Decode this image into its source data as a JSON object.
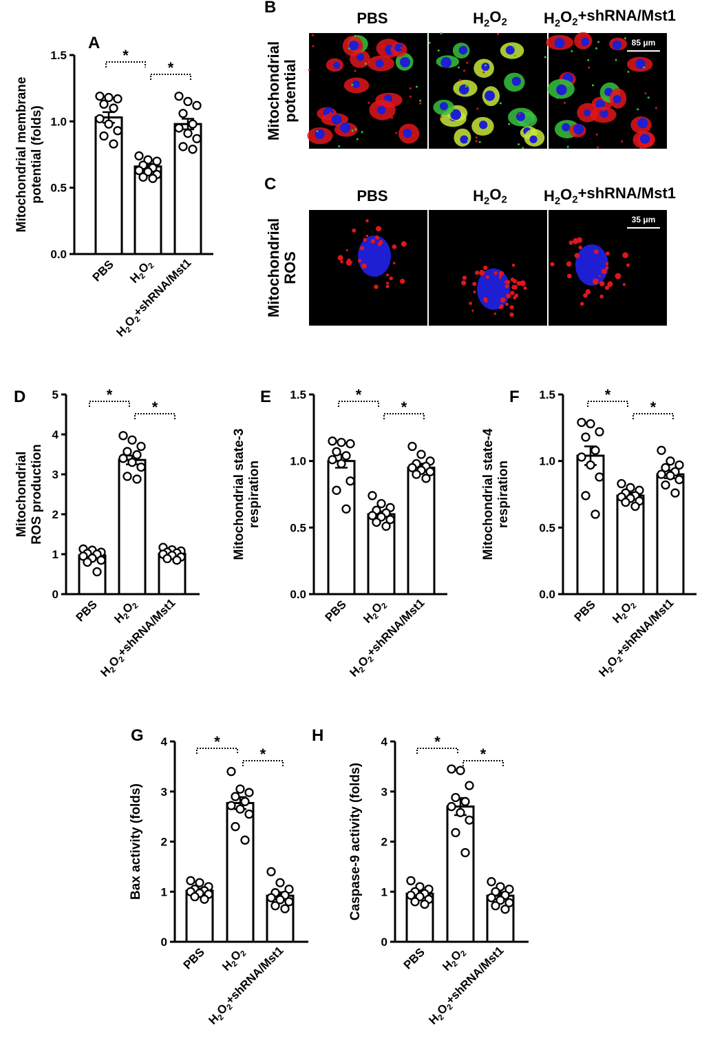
{
  "chart_data": [
    {
      "panel": "A",
      "type": "bar",
      "categories": [
        "PBS",
        "H2O2",
        "H2O2+shRNA/Mst1"
      ],
      "ylabel_lines": [
        "Mitochondrial membrane",
        "potential (folds)"
      ],
      "ylim": [
        0,
        1.5
      ],
      "yticks": [
        "0.0",
        "0.5",
        "1.0",
        "1.5"
      ],
      "ytick_values": [
        0,
        0.5,
        1.0,
        1.5
      ],
      "values": [
        1.03,
        0.66,
        0.98
      ],
      "sem": [
        0.04,
        0.02,
        0.04
      ],
      "points": [
        [
          1.19,
          1.18,
          1.17,
          1.13,
          1.1,
          1.02,
          0.98,
          0.93,
          0.89,
          0.83
        ],
        [
          0.74,
          0.71,
          0.7,
          0.67,
          0.65,
          0.63,
          0.62,
          0.6,
          0.58,
          0.57
        ],
        [
          1.19,
          1.15,
          1.12,
          1.06,
          0.98,
          0.95,
          0.91,
          0.87,
          0.81,
          0.79
        ]
      ],
      "significance": [
        [
          "PBS",
          "H2O2",
          "*"
        ],
        [
          "H2O2",
          "H2O2+shRNA/Mst1",
          "*"
        ]
      ]
    },
    {
      "panel": "D",
      "type": "bar",
      "categories": [
        "PBS",
        "H2O2",
        "H2O2+shRNA/Mst1"
      ],
      "ylabel_lines": [
        "Mitochondrial",
        "ROS production"
      ],
      "ylim": [
        0,
        5
      ],
      "yticks": [
        "0",
        "1",
        "2",
        "3",
        "4",
        "5"
      ],
      "ytick_values": [
        0,
        1,
        2,
        3,
        4,
        5
      ],
      "values": [
        0.97,
        3.36,
        1.01
      ],
      "sem": [
        0.06,
        0.11,
        0.04
      ],
      "points": [
        [
          1.13,
          1.1,
          1.05,
          1.02,
          1.0,
          0.95,
          0.9,
          0.85,
          0.8,
          0.56
        ],
        [
          3.97,
          3.86,
          3.7,
          3.57,
          3.49,
          3.4,
          3.3,
          3.18,
          2.95,
          2.88
        ],
        [
          1.17,
          1.11,
          1.08,
          1.05,
          1.03,
          1.0,
          0.97,
          0.93,
          0.89,
          0.85
        ]
      ],
      "significance": [
        [
          "PBS",
          "H2O2",
          "*"
        ],
        [
          "H2O2",
          "H2O2+shRNA/Mst1",
          "*"
        ]
      ]
    },
    {
      "panel": "E",
      "type": "bar",
      "categories": [
        "PBS",
        "H2O2",
        "H2O2+shRNA/Mst1"
      ],
      "ylabel_lines": [
        "Mitochondrial state-3",
        "respiration"
      ],
      "ylim": [
        0,
        1.5
      ],
      "yticks": [
        "0.0",
        "0.5",
        "1.0",
        "1.5"
      ],
      "ytick_values": [
        0,
        0.5,
        1.0,
        1.5
      ],
      "values": [
        1.0,
        0.6,
        0.95
      ],
      "sem": [
        0.05,
        0.02,
        0.03
      ],
      "points": [
        [
          1.15,
          1.14,
          1.13,
          1.07,
          1.04,
          1.01,
          0.98,
          0.85,
          0.78,
          0.64
        ],
        [
          0.74,
          0.68,
          0.65,
          0.63,
          0.61,
          0.59,
          0.58,
          0.56,
          0.54,
          0.51
        ],
        [
          1.11,
          1.05,
          1.0,
          0.98,
          0.96,
          0.95,
          0.93,
          0.92,
          0.9,
          0.87
        ]
      ],
      "significance": [
        [
          "PBS",
          "H2O2",
          "*"
        ],
        [
          "H2O2",
          "H2O2+shRNA/Mst1",
          "*"
        ]
      ]
    },
    {
      "panel": "F",
      "type": "bar",
      "categories": [
        "PBS",
        "H2O2",
        "H2O2+shRNA/Mst1"
      ],
      "ylabel_lines": [
        "Mitochondrial state-4",
        "respiration"
      ],
      "ylim": [
        0,
        1.5
      ],
      "yticks": [
        "0.0",
        "0.5",
        "1.0",
        "1.5"
      ],
      "ytick_values": [
        0,
        0.5,
        1.0,
        1.5
      ],
      "values": [
        1.04,
        0.74,
        0.9
      ],
      "sem": [
        0.07,
        0.02,
        0.03
      ],
      "points": [
        [
          1.29,
          1.28,
          1.22,
          1.18,
          1.08,
          1.03,
          0.97,
          0.88,
          0.74,
          0.6
        ],
        [
          0.83,
          0.8,
          0.78,
          0.76,
          0.74,
          0.73,
          0.72,
          0.7,
          0.69,
          0.66
        ],
        [
          1.08,
          1.0,
          0.97,
          0.95,
          0.92,
          0.9,
          0.89,
          0.86,
          0.82,
          0.76
        ]
      ],
      "significance": [
        [
          "PBS",
          "H2O2",
          "*"
        ],
        [
          "H2O2",
          "H2O2+shRNA/Mst1",
          "*"
        ]
      ]
    },
    {
      "panel": "G",
      "type": "bar",
      "categories": [
        "PBS",
        "H2O2",
        "H2O2+shRNA/Mst1"
      ],
      "ylabel_lines": [
        "Bax activity (folds)"
      ],
      "ylim": [
        0,
        4
      ],
      "yticks": [
        "0",
        "1",
        "2",
        "3",
        "4"
      ],
      "ytick_values": [
        0,
        1,
        2,
        3,
        4
      ],
      "values": [
        1.02,
        2.77,
        0.92
      ],
      "sem": [
        0.04,
        0.12,
        0.07
      ],
      "points": [
        [
          1.22,
          1.18,
          1.1,
          1.05,
          1.02,
          1.0,
          0.97,
          0.95,
          0.9,
          0.85
        ],
        [
          3.4,
          3.05,
          2.98,
          2.9,
          2.8,
          2.72,
          2.65,
          2.55,
          2.3,
          2.03
        ],
        [
          1.4,
          1.18,
          1.05,
          0.98,
          0.93,
          0.88,
          0.84,
          0.8,
          0.72,
          0.66
        ]
      ],
      "significance": [
        [
          "PBS",
          "H2O2",
          "*"
        ],
        [
          "H2O2",
          "H2O2+shRNA/Mst1",
          "*"
        ]
      ]
    },
    {
      "panel": "H",
      "type": "bar",
      "categories": [
        "PBS",
        "H2O2",
        "H2O2+shRNA/Mst1"
      ],
      "ylabel_lines": [
        "Caspase-9 activity (folds)"
      ],
      "ylim": [
        0,
        4
      ],
      "yticks": [
        "0",
        "1",
        "2",
        "3",
        "4"
      ],
      "ytick_values": [
        0,
        1,
        2,
        3,
        4
      ],
      "values": [
        0.96,
        2.7,
        0.92
      ],
      "sem": [
        0.05,
        0.17,
        0.07
      ],
      "points": [
        [
          1.22,
          1.1,
          1.05,
          1.0,
          0.96,
          0.93,
          0.9,
          0.85,
          0.8,
          0.75
        ],
        [
          3.45,
          3.42,
          3.12,
          2.88,
          2.8,
          2.7,
          2.58,
          2.43,
          2.18,
          1.78
        ],
        [
          1.2,
          1.1,
          1.05,
          1.0,
          0.93,
          0.88,
          0.83,
          0.78,
          0.72,
          0.65
        ]
      ],
      "significance": [
        [
          "PBS",
          "H2O2",
          "*"
        ],
        [
          "H2O2",
          "H2O2+shRNA/Mst1",
          "*"
        ]
      ]
    }
  ],
  "micrographs": {
    "columns": [
      "PBS",
      "H2O2",
      "H2O2+shRNA/Mst1"
    ],
    "rows": [
      {
        "panel": "B",
        "label_lines": [
          "Mitochondrial",
          "potential"
        ],
        "scale_bar": "85 μm"
      },
      {
        "panel": "C",
        "label_lines": [
          "Mitochondrial",
          "ROS"
        ],
        "scale_bar": "35 μm"
      }
    ]
  },
  "colors": {
    "ink": "#000000",
    "bar_fill": "#ffffff",
    "micro_bg": "#000000",
    "red": "#e0161b",
    "green": "#37c23c",
    "blue": "#1e1ed2",
    "yellow": "#c8e83a"
  }
}
